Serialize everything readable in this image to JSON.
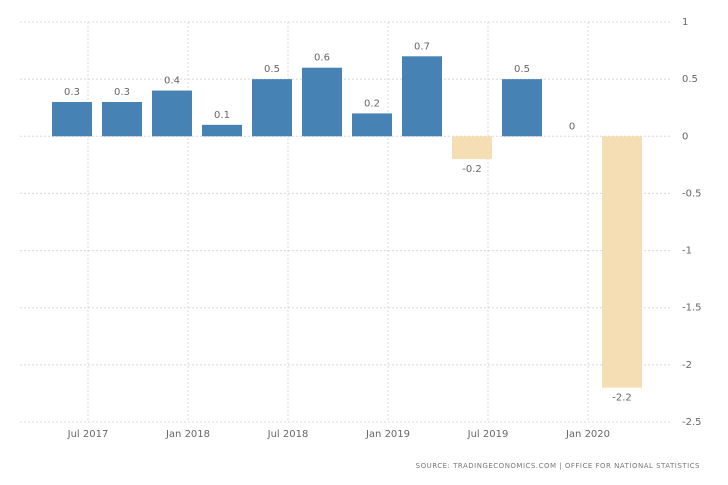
{
  "chart_data": {
    "type": "bar",
    "x": [
      2017.42,
      2017.67,
      2017.92,
      2018.17,
      2018.42,
      2018.67,
      2018.92,
      2019.17,
      2019.42,
      2019.67,
      2019.92,
      2020.17
    ],
    "values": [
      0.3,
      0.3,
      0.4,
      0.1,
      0.5,
      0.6,
      0.2,
      0.7,
      -0.2,
      0.5,
      0,
      -2.2
    ],
    "positive_color": "#4682b4",
    "negative_color": "#f5deb3",
    "xlim": [
      2017.16,
      2020.41
    ],
    "xticks": [
      {
        "value": 2017.5,
        "label": "Jul 2017"
      },
      {
        "value": 2018.0,
        "label": "Jan 2018"
      },
      {
        "value": 2018.5,
        "label": "Jul 2018"
      },
      {
        "value": 2019.0,
        "label": "Jan 2019"
      },
      {
        "value": 2019.5,
        "label": "Jul 2019"
      },
      {
        "value": 2020.0,
        "label": "Jan 2020"
      }
    ],
    "ylim": [
      -2.5,
      1
    ],
    "yticks": [
      1,
      0.5,
      0,
      -0.5,
      -1,
      -1.5,
      -2,
      -2.5
    ],
    "grid": true,
    "source": "SOURCE: TRADINGECONOMICS.COM | OFFICE FOR NATIONAL STATISTICS"
  }
}
